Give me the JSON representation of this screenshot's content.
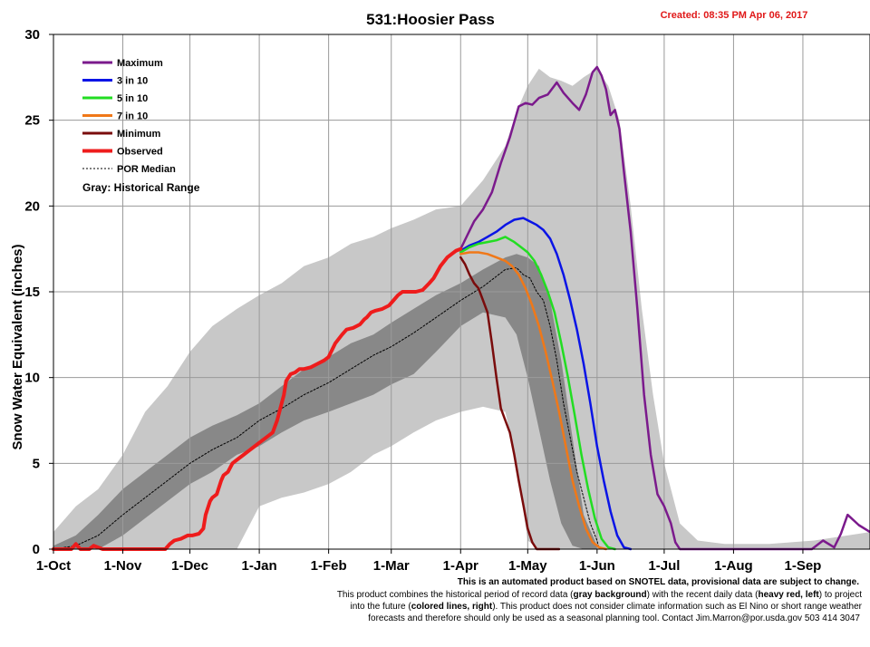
{
  "header": {
    "title": "531:Hoosier Pass",
    "created": "Created: 08:35 PM Apr 06, 2017"
  },
  "chart_data": {
    "type": "line",
    "title": "531:Hoosier Pass",
    "ylabel": "Snow Water Equivalent (inches)",
    "xlabel": "",
    "ylim": [
      0,
      30
    ],
    "yticks": [
      0,
      5,
      10,
      15,
      20,
      25,
      30
    ],
    "xlim_days": [
      0,
      365
    ],
    "xticks": [
      {
        "label": "1-Oct",
        "day": 0
      },
      {
        "label": "1-Nov",
        "day": 31
      },
      {
        "label": "1-Dec",
        "day": 61
      },
      {
        "label": "1-Jan",
        "day": 92
      },
      {
        "label": "1-Feb",
        "day": 123
      },
      {
        "label": "1-Mar",
        "day": 151
      },
      {
        "label": "1-Apr",
        "day": 182
      },
      {
        "label": "1-May",
        "day": 212
      },
      {
        "label": "1-Jun",
        "day": 243
      },
      {
        "label": "1-Jul",
        "day": 273
      },
      {
        "label": "1-Aug",
        "day": 304
      },
      {
        "label": "1-Sep",
        "day": 335
      }
    ],
    "grid": "vertical and horizontal",
    "legend_position": "top-left",
    "legend": [
      {
        "label": "Maximum",
        "color": "#7b1a8c",
        "style": "solid"
      },
      {
        "label": "3 in 10",
        "color": "#0a14e6",
        "style": "solid"
      },
      {
        "label": "5 in 10",
        "color": "#22dd22",
        "style": "solid"
      },
      {
        "label": "7 in 10",
        "color": "#f07818",
        "style": "solid"
      },
      {
        "label": "Minimum",
        "color": "#7a0c0c",
        "style": "solid"
      },
      {
        "label": "Observed",
        "color": "#ee1c1c",
        "style": "solid-heavy"
      },
      {
        "label": "POR Median",
        "color": "#000000",
        "style": "dotted"
      }
    ],
    "legend_note": "Gray: Historical Range",
    "historical_range": {
      "x": [
        0,
        10,
        20,
        31,
        41,
        51,
        61,
        71,
        82,
        92,
        102,
        112,
        123,
        133,
        143,
        151,
        161,
        171,
        182,
        192,
        202,
        207,
        212,
        217,
        222,
        227,
        232,
        237,
        243,
        248,
        253,
        258,
        263,
        268,
        273,
        280,
        288,
        300,
        320,
        340,
        365
      ],
      "upper": [
        1.0,
        2.5,
        3.5,
        5.5,
        8.0,
        9.5,
        11.5,
        13.0,
        14.0,
        14.8,
        15.5,
        16.5,
        17.0,
        17.8,
        18.2,
        18.7,
        19.2,
        19.8,
        20.0,
        21.5,
        23.5,
        25.5,
        27.0,
        28.0,
        27.5,
        27.3,
        27.0,
        27.5,
        28.0,
        27.0,
        25.0,
        20.0,
        14.0,
        9.0,
        5.0,
        1.5,
        0.5,
        0.3,
        0.3,
        0.5,
        1.0
      ],
      "lower": [
        0,
        0,
        0,
        0,
        0,
        0,
        0,
        0,
        0,
        2.5,
        3.0,
        3.3,
        3.8,
        4.5,
        5.5,
        6.0,
        6.8,
        7.5,
        8.0,
        8.3,
        8.0,
        5.0,
        0.5,
        0,
        0,
        0,
        0,
        0,
        0,
        0,
        0,
        0,
        0,
        0,
        0,
        0,
        0,
        0,
        0,
        0,
        0
      ]
    },
    "inner_range": {
      "x": [
        0,
        10,
        20,
        31,
        41,
        51,
        61,
        71,
        82,
        92,
        102,
        112,
        123,
        133,
        143,
        151,
        161,
        171,
        182,
        192,
        202,
        207,
        212,
        217,
        222,
        227,
        232,
        237,
        243
      ],
      "upper": [
        0.2,
        0.8,
        2.0,
        3.5,
        4.5,
        5.5,
        6.5,
        7.2,
        7.8,
        8.5,
        9.5,
        10.5,
        11.2,
        12.0,
        12.5,
        13.2,
        14.0,
        14.8,
        15.5,
        16.3,
        17.0,
        17.2,
        17.0,
        16.5,
        14.5,
        11.0,
        6.5,
        2.0,
        0.2
      ],
      "lower": [
        0,
        0,
        0,
        0.8,
        1.8,
        2.8,
        3.8,
        4.5,
        5.5,
        6.0,
        6.8,
        7.5,
        8.0,
        8.5,
        9.0,
        9.6,
        10.2,
        11.5,
        13.0,
        13.8,
        13.5,
        12.5,
        10.0,
        7.0,
        4.0,
        1.5,
        0.2,
        0,
        0
      ]
    },
    "series": [
      {
        "name": "Maximum",
        "color": "#7b1a8c",
        "width": 2.5,
        "x": [
          182,
          185,
          188,
          192,
          196,
          200,
          204,
          208,
          211,
          214,
          217,
          221,
          225,
          228,
          232,
          235,
          238,
          241,
          243,
          245,
          247,
          249,
          251,
          253,
          255,
          258,
          261,
          264,
          267,
          270,
          273,
          276,
          278,
          280,
          284,
          290,
          300,
          310,
          320,
          330,
          339,
          344,
          349,
          352,
          355,
          360,
          365
        ],
        "y": [
          17.5,
          18.3,
          19.1,
          19.8,
          20.8,
          22.5,
          24.0,
          25.8,
          26.0,
          25.9,
          26.3,
          26.5,
          27.2,
          26.6,
          26.0,
          25.6,
          26.5,
          27.8,
          28.1,
          27.6,
          26.8,
          25.3,
          25.6,
          24.5,
          22.0,
          18.5,
          14.0,
          9.0,
          5.5,
          3.2,
          2.5,
          1.5,
          0.4,
          0,
          0,
          0,
          0,
          0,
          0,
          0,
          0,
          0.5,
          0.1,
          0.9,
          2.0,
          1.4,
          1.0
        ]
      },
      {
        "name": "3 in 10",
        "color": "#0a14e6",
        "width": 2.5,
        "x": [
          182,
          186,
          190,
          194,
          198,
          202,
          206,
          210,
          213,
          216,
          219,
          222,
          225,
          228,
          231,
          234,
          237,
          240,
          243,
          246,
          249,
          252,
          255,
          258
        ],
        "y": [
          17.4,
          17.7,
          17.9,
          18.2,
          18.5,
          18.9,
          19.2,
          19.3,
          19.1,
          18.9,
          18.6,
          18.1,
          17.2,
          16.0,
          14.5,
          12.8,
          10.8,
          8.5,
          6.0,
          4.0,
          2.2,
          0.8,
          0.1,
          0
        ]
      },
      {
        "name": "5 in 10",
        "color": "#22dd22",
        "width": 2.5,
        "x": [
          182,
          186,
          190,
          194,
          198,
          202,
          206,
          209,
          212,
          215,
          218,
          221,
          224,
          227,
          230,
          233,
          236,
          239,
          242,
          245,
          248,
          251
        ],
        "y": [
          17.3,
          17.6,
          17.8,
          17.9,
          18.0,
          18.2,
          17.9,
          17.6,
          17.3,
          16.8,
          16.0,
          15.0,
          13.8,
          12.0,
          10.0,
          7.8,
          5.5,
          3.5,
          1.8,
          0.6,
          0.1,
          0
        ]
      },
      {
        "name": "7 in 10",
        "color": "#f07818",
        "width": 2.5,
        "x": [
          182,
          186,
          190,
          194,
          198,
          202,
          205,
          208,
          211,
          214,
          217,
          220,
          223,
          226,
          229,
          232,
          235,
          238,
          241,
          244,
          247
        ],
        "y": [
          17.2,
          17.3,
          17.3,
          17.2,
          17.0,
          16.8,
          16.5,
          16.0,
          15.2,
          14.2,
          13.0,
          11.5,
          9.8,
          8.0,
          6.0,
          4.0,
          2.5,
          1.2,
          0.4,
          0.1,
          0
        ]
      },
      {
        "name": "Minimum",
        "color": "#7a0c0c",
        "width": 2.5,
        "x": [
          182,
          184,
          186,
          188,
          190,
          192,
          194,
          196,
          198,
          200,
          202,
          204,
          206,
          208,
          210,
          212,
          214,
          216,
          218,
          220,
          222,
          224,
          226
        ],
        "y": [
          17.0,
          16.6,
          16.0,
          15.5,
          15.2,
          14.5,
          13.8,
          12.0,
          10.0,
          8.2,
          7.5,
          6.8,
          5.5,
          4.0,
          2.6,
          1.2,
          0.4,
          0,
          0,
          0,
          0,
          0,
          0
        ]
      },
      {
        "name": "Observed",
        "color": "#ee1c1c",
        "width": 4,
        "x": [
          0,
          8,
          10,
          12,
          16,
          18,
          22,
          30,
          40,
          50,
          52,
          54,
          57,
          60,
          62,
          65,
          67,
          68,
          70,
          71,
          73,
          75,
          76,
          78,
          80,
          82,
          85,
          88,
          90,
          92,
          95,
          98,
          100,
          103,
          104,
          106,
          108,
          110,
          112,
          115,
          118,
          121,
          123,
          126,
          129,
          131,
          134,
          137,
          139,
          140,
          142,
          144,
          147,
          150,
          152,
          154,
          156,
          158,
          160,
          162,
          165,
          168,
          170,
          173,
          176,
          178,
          180,
          182
        ],
        "y": [
          0,
          0,
          0.3,
          0,
          0,
          0.2,
          0,
          0,
          0,
          0,
          0.3,
          0.5,
          0.6,
          0.8,
          0.8,
          0.9,
          1.2,
          2.0,
          2.8,
          3.0,
          3.2,
          4.0,
          4.3,
          4.5,
          5.0,
          5.2,
          5.5,
          5.8,
          6.0,
          6.2,
          6.5,
          6.8,
          7.5,
          9.0,
          9.8,
          10.2,
          10.3,
          10.5,
          10.5,
          10.6,
          10.8,
          11.0,
          11.2,
          12.0,
          12.5,
          12.8,
          12.9,
          13.1,
          13.4,
          13.5,
          13.8,
          13.9,
          14.0,
          14.2,
          14.5,
          14.8,
          15.0,
          15.0,
          15.0,
          15.0,
          15.1,
          15.5,
          15.8,
          16.5,
          17.0,
          17.2,
          17.4,
          17.5
        ]
      },
      {
        "name": "POR Median",
        "color": "#000000",
        "width": 1,
        "dash": "2,2",
        "x": [
          0,
          10,
          20,
          31,
          41,
          51,
          61,
          71,
          82,
          92,
          102,
          112,
          123,
          133,
          143,
          151,
          161,
          171,
          182,
          192,
          202,
          207,
          210,
          213,
          216,
          219,
          222,
          225,
          228,
          231,
          234,
          237,
          240,
          243,
          244
        ],
        "y": [
          0,
          0.2,
          0.8,
          2.0,
          3.0,
          4.0,
          5.0,
          5.8,
          6.5,
          7.5,
          8.2,
          9.0,
          9.7,
          10.5,
          11.3,
          11.8,
          12.6,
          13.5,
          14.5,
          15.3,
          16.3,
          16.4,
          16.0,
          15.8,
          15.0,
          14.5,
          13.0,
          11.0,
          8.5,
          6.5,
          4.5,
          3.0,
          1.5,
          0.5,
          0
        ]
      }
    ]
  },
  "footer": {
    "line1": "This is an automated product based on SNOTEL data, provisional data are subject to change.",
    "line2_a": "This product combines the historical period of record data (",
    "line2_b": "gray background",
    "line2_c": ") with the recent daily data (",
    "line2_d": "heavy red, left",
    "line2_e": ") to project",
    "line3_a": "into the future (",
    "line3_b": "colored lines, right",
    "line3_c": "). This product does not consider climate information such as El Nino or short range weather",
    "line4": "forecasts and therefore should only be used as a seasonal planning tool. Contact Jim.Marron@por.usda.gov 503 414 3047"
  },
  "colors": {
    "historical_range": "#c8c8c8",
    "inner_range": "#888888",
    "grid": "#9a9a9a"
  }
}
